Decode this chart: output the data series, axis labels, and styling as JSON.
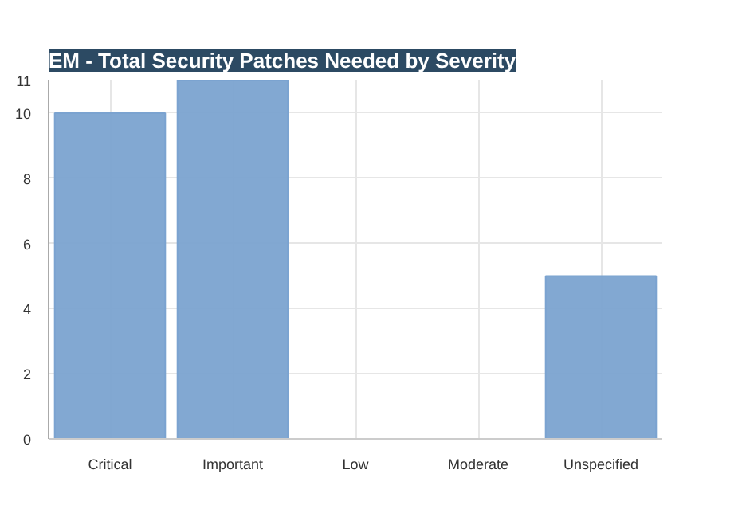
{
  "chart_data": {
    "type": "bar",
    "title": "EM - Total Security Patches Needed by Severity",
    "categories": [
      "Critical",
      "Important",
      "Low",
      "Moderate",
      "Unspecified"
    ],
    "values": [
      10,
      11,
      0,
      0,
      5
    ],
    "color": "#7ba3d0",
    "ylim": [
      0,
      11
    ],
    "yticks": [
      0,
      2,
      4,
      6,
      8,
      10,
      11
    ],
    "grid": true
  }
}
